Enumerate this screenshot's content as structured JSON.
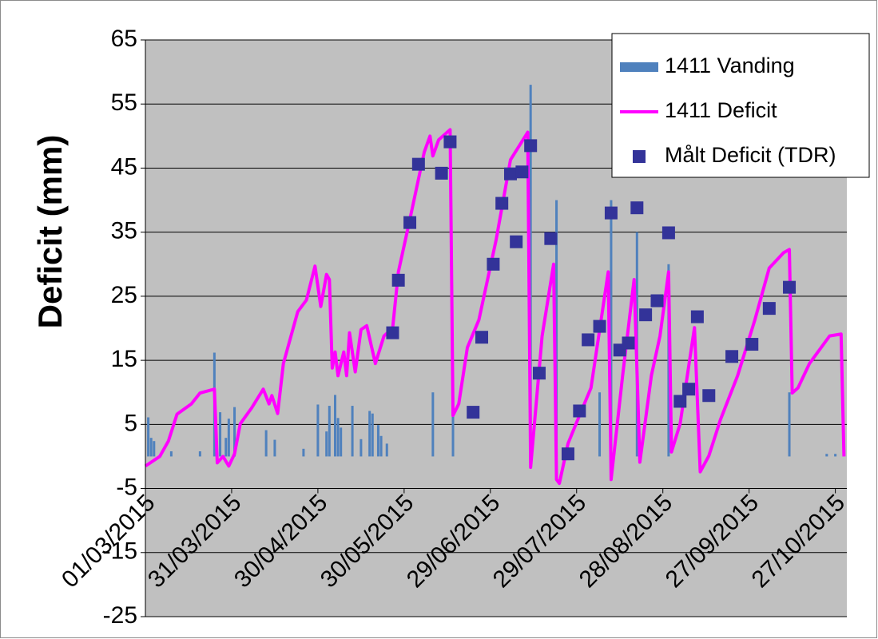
{
  "chart_data": {
    "type": "combo",
    "y_label": "Deficit (mm)",
    "ylim": [
      -25,
      65
    ],
    "yticks": [
      -25,
      -15,
      -5,
      5,
      15,
      25,
      35,
      45,
      55,
      65
    ],
    "xlim": [
      "01/03/2015",
      "31/10/2015"
    ],
    "xticks": [
      "01/03/2015",
      "31/03/2015",
      "30/04/2015",
      "30/05/2015",
      "29/06/2015",
      "29/07/2015",
      "28/08/2015",
      "27/09/2015",
      "27/10/2015"
    ],
    "x_axis_crosses": -5,
    "grid": true,
    "legend": "upper right",
    "series": [
      {
        "name": "1411 Vanding",
        "type": "bar",
        "color": "#4f81bd",
        "x": [
          "02/03/2015",
          "03/03/2015",
          "04/03/2015",
          "10/03/2015",
          "20/03/2015",
          "25/03/2015",
          "27/03/2015",
          "29/03/2015",
          "30/03/2015",
          "01/04/2015",
          "12/04/2015",
          "15/04/2015",
          "25/04/2015",
          "30/04/2015",
          "03/05/2015",
          "04/05/2015",
          "06/05/2015",
          "07/05/2015",
          "08/05/2015",
          "12/05/2015",
          "15/05/2015",
          "18/05/2015",
          "19/05/2015",
          "21/05/2015",
          "22/05/2015",
          "24/05/2015",
          "09/06/2015",
          "16/06/2015",
          "13/07/2015",
          "22/07/2015",
          "06/08/2015",
          "10/08/2015",
          "19/08/2015",
          "30/08/2015",
          "11/10/2015",
          "24/10/2015",
          "27/10/2015"
        ],
        "values": [
          6.1,
          2.9,
          2.4,
          0.8,
          0.8,
          16.2,
          6.9,
          2.9,
          5.9,
          7.7,
          4.1,
          2.6,
          1.2,
          8.1,
          3.9,
          7.9,
          9.6,
          6,
          4.5,
          7.9,
          2.7,
          7.1,
          6.7,
          4.9,
          3.2,
          2,
          10,
          10,
          58,
          40,
          10,
          40,
          35,
          30,
          10,
          0.4,
          0.4
        ]
      },
      {
        "name": "1411 Deficit",
        "type": "line",
        "color": "#ff00ff",
        "x": [
          "01/03/2015",
          "06/03/2015",
          "09/03/2015",
          "12/03/2015",
          "17/03/2015",
          "20/03/2015",
          "25/03/2015",
          "26/03/2015",
          "28/03/2015",
          "30/03/2015",
          "01/04/2015",
          "03/04/2015",
          "07/04/2015",
          "11/04/2015",
          "13/04/2015",
          "14/04/2015",
          "16/04/2015",
          "18/04/2015",
          "23/04/2015",
          "26/04/2015",
          "29/04/2015",
          "01/05/2015",
          "03/05/2015",
          "04/05/2015",
          "05/05/2015",
          "06/05/2015",
          "07/05/2015",
          "09/05/2015",
          "10/05/2015",
          "11/05/2015",
          "13/05/2015",
          "15/05/2015",
          "17/05/2015",
          "20/05/2015",
          "23/05/2015",
          "26/05/2015",
          "28/05/2015",
          "01/06/2015",
          "06/06/2015",
          "08/06/2015",
          "09/06/2015",
          "11/06/2015",
          "14/06/2015",
          "15/06/2015",
          "16/06/2015",
          "18/06/2015",
          "21/06/2015",
          "25/06/2015",
          "01/07/2015",
          "06/07/2015",
          "12/07/2015",
          "13/07/2015",
          "17/07/2015",
          "21/07/2015",
          "22/07/2015",
          "23/07/2015",
          "26/07/2015",
          "30/07/2015",
          "03/08/2015",
          "09/08/2015",
          "10/08/2015",
          "14/08/2015",
          "18/08/2015",
          "20/08/2015",
          "24/08/2015",
          "27/08/2015",
          "30/08/2015",
          "31/08/2015",
          "03/09/2015",
          "08/09/2015",
          "10/09/2015",
          "13/09/2015",
          "17/09/2015",
          "23/09/2015",
          "29/09/2015",
          "04/10/2015",
          "09/10/2015",
          "11/10/2015",
          "12/10/2015",
          "14/10/2015",
          "18/10/2015",
          "25/10/2015",
          "29/10/2015",
          "30/10/2015"
        ],
        "values": [
          -1.5,
          0,
          2.4,
          6.6,
          8.2,
          9.9,
          10.5,
          -1,
          0,
          -1.5,
          0.4,
          5.1,
          7.6,
          10.5,
          8.2,
          9.5,
          6.7,
          14.5,
          22.6,
          24.4,
          29.7,
          23.4,
          28.4,
          27.6,
          13.8,
          16.3,
          12.6,
          16.3,
          12.6,
          19.3,
          13.2,
          19.8,
          20.4,
          14.5,
          18.8,
          20,
          28.8,
          37,
          47.5,
          50,
          46.9,
          49.4,
          50.6,
          51,
          6.4,
          8.2,
          17,
          21.3,
          33.8,
          46.3,
          50.6,
          -1.7,
          18.8,
          30,
          -3.6,
          -4.2,
          2,
          6.4,
          10.7,
          28.8,
          -3.6,
          12.6,
          27.6,
          -0.9,
          12.6,
          18.8,
          28.8,
          0.7,
          5.1,
          20.1,
          -2.4,
          0.1,
          5.7,
          12.6,
          21.3,
          29.4,
          31.8,
          32.3,
          9.9,
          10.7,
          14.5,
          18.8,
          19.1,
          0
        ]
      },
      {
        "name": "Målt Deficit (TDR)",
        "type": "scatter",
        "color": "#333399",
        "x": [
          "26/05/2015",
          "28/05/2015",
          "01/06/2015",
          "04/06/2015",
          "12/06/2015",
          "15/06/2015",
          "23/06/2015",
          "26/06/2015",
          "30/06/2015",
          "03/07/2015",
          "06/07/2015",
          "08/07/2015",
          "10/07/2015",
          "13/07/2015",
          "16/07/2015",
          "20/07/2015",
          "26/07/2015",
          "30/07/2015",
          "02/08/2015",
          "06/08/2015",
          "10/08/2015",
          "13/08/2015",
          "16/08/2015",
          "19/08/2015",
          "22/08/2015",
          "26/08/2015",
          "30/08/2015",
          "03/09/2015",
          "06/09/2015",
          "09/09/2015",
          "13/09/2015",
          "21/09/2015",
          "28/09/2015",
          "04/10/2015",
          "11/10/2015"
        ],
        "values": [
          19.3,
          27.5,
          36.5,
          45.6,
          44.2,
          49.1,
          6.9,
          18.6,
          30,
          39.5,
          44.1,
          33.5,
          44.4,
          48.5,
          13,
          34,
          0.4,
          7.1,
          18.2,
          20.3,
          38,
          16.6,
          17.7,
          38.8,
          22.1,
          24.3,
          34.9,
          8.6,
          10.5,
          21.8,
          9.5,
          15.6,
          17.5,
          23.1,
          26.4
        ]
      }
    ]
  }
}
